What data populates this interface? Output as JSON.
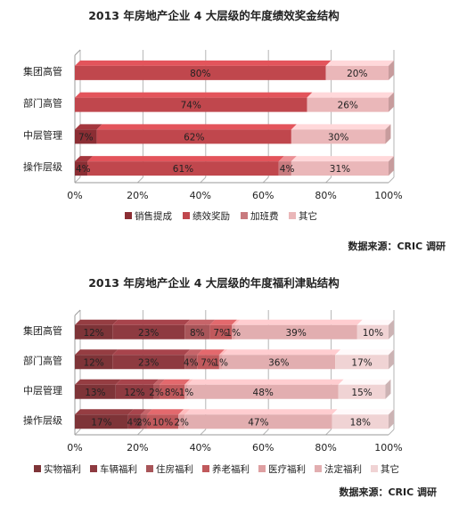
{
  "charts_meta": {
    "axis_ticks": [
      "0%",
      "20%",
      "40%",
      "60%",
      "80%",
      "100%"
    ]
  },
  "chart_data": [
    {
      "type": "bar",
      "orientation": "horizontal",
      "stacked": "percent",
      "title": "2013 年房地产企业 4 大层级的年度绩效奖金结构",
      "categories": [
        "集团高管",
        "部门高管",
        "中层管理",
        "操作层级"
      ],
      "series": [
        {
          "name": "销售提成",
          "color": "#8b2e34",
          "values": [
            0,
            0,
            7,
            4
          ]
        },
        {
          "name": "绩效奖励",
          "color": "#c0474d",
          "values": [
            80,
            74,
            62,
            61
          ]
        },
        {
          "name": "加班费",
          "color": "#c87a7e",
          "values": [
            0,
            0,
            0,
            4
          ]
        },
        {
          "name": "其它",
          "color": "#eab7b9",
          "values": [
            20,
            26,
            30,
            31
          ]
        }
      ],
      "data_labels": [
        [
          "",
          "80%",
          "",
          "20%"
        ],
        [
          "",
          "74%",
          "",
          "26%"
        ],
        [
          "7%",
          "62%",
          "",
          "30%"
        ],
        [
          "4%",
          "61%",
          "4%",
          "31%"
        ]
      ],
      "xlim": [
        0,
        100
      ],
      "grid": true,
      "legend_position": "bottom",
      "source": "数据来源：CRIC 调研"
    },
    {
      "type": "bar",
      "orientation": "horizontal",
      "stacked": "percent",
      "title": "2013 年房地产企业 4 大层级的年度福利津贴结构",
      "categories": [
        "集团高管",
        "部门高管",
        "中层管理",
        "操作层级"
      ],
      "series": [
        {
          "name": "实物福利",
          "color": "#7e3438",
          "values": [
            12,
            12,
            13,
            17
          ]
        },
        {
          "name": "车辆福利",
          "color": "#8e3a40",
          "values": [
            23,
            23,
            12,
            4
          ]
        },
        {
          "name": "住房福利",
          "color": "#a85559",
          "values": [
            8,
            4,
            2,
            2
          ]
        },
        {
          "name": "养老福利",
          "color": "#c0595c",
          "values": [
            7,
            7,
            8,
            10
          ]
        },
        {
          "name": "医疗福利",
          "color": "#de9fa1",
          "values": [
            1,
            1,
            1,
            2
          ]
        },
        {
          "name": "法定福利",
          "color": "#e2aeb0",
          "values": [
            39,
            36,
            48,
            47
          ]
        },
        {
          "name": "其它",
          "color": "#f0d3d4",
          "values": [
            10,
            17,
            15,
            18
          ]
        }
      ],
      "data_labels": [
        [
          "12%",
          "23%",
          "8%",
          "7%",
          "1%",
          "39%",
          "10%"
        ],
        [
          "12%",
          "23%",
          "4%",
          "7%",
          "1%",
          "36%",
          "17%"
        ],
        [
          "13%",
          "12%",
          "2%",
          "8%",
          "1%",
          "48%",
          "15%"
        ],
        [
          "17%",
          "4%",
          "2%",
          "10%",
          "2%",
          "47%",
          "18%"
        ]
      ],
      "xlim": [
        0,
        100
      ],
      "grid": true,
      "legend_position": "bottom",
      "source": "数据来源：CRIC 调研"
    }
  ]
}
